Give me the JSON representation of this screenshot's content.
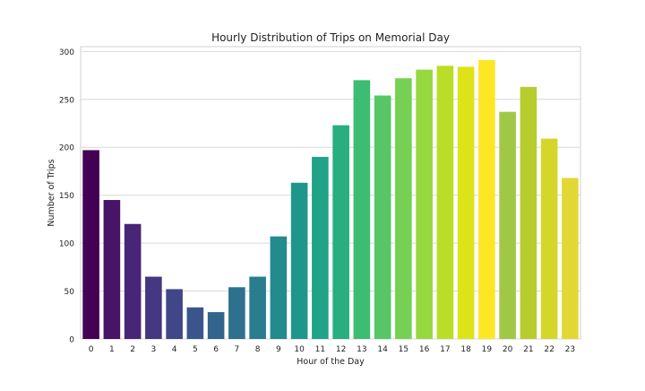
{
  "chart_data": {
    "type": "bar",
    "title": "Hourly Distribution of Trips on Memorial Day",
    "xlabel": "Hour of the Day",
    "ylabel": "Number of Trips",
    "categories": [
      "0",
      "1",
      "2",
      "3",
      "4",
      "5",
      "6",
      "7",
      "8",
      "9",
      "10",
      "11",
      "12",
      "13",
      "14",
      "15",
      "16",
      "17",
      "18",
      "19",
      "20",
      "21",
      "22",
      "23"
    ],
    "values": [
      197,
      145,
      120,
      65,
      52,
      33,
      28,
      54,
      65,
      107,
      163,
      190,
      223,
      270,
      254,
      272,
      281,
      285,
      284,
      291,
      237,
      263,
      209,
      168
    ],
    "ylim": [
      0,
      305
    ],
    "yticks": [
      0,
      50,
      100,
      150,
      200,
      250,
      300
    ],
    "grid": true,
    "colors": [
      "#440154",
      "#481467",
      "#482576",
      "#453781",
      "#3f4788",
      "#39558c",
      "#32648e",
      "#2d718e",
      "#287d8e",
      "#238a8d",
      "#1f968b",
      "#20a386",
      "#29af7f",
      "#3dbc74",
      "#56c667",
      "#75d054",
      "#95d840",
      "#bade28",
      "#dde318",
      "#fde725",
      "#a0c846",
      "#b7cd2e",
      "#d3d72a",
      "#e2d835"
    ]
  }
}
